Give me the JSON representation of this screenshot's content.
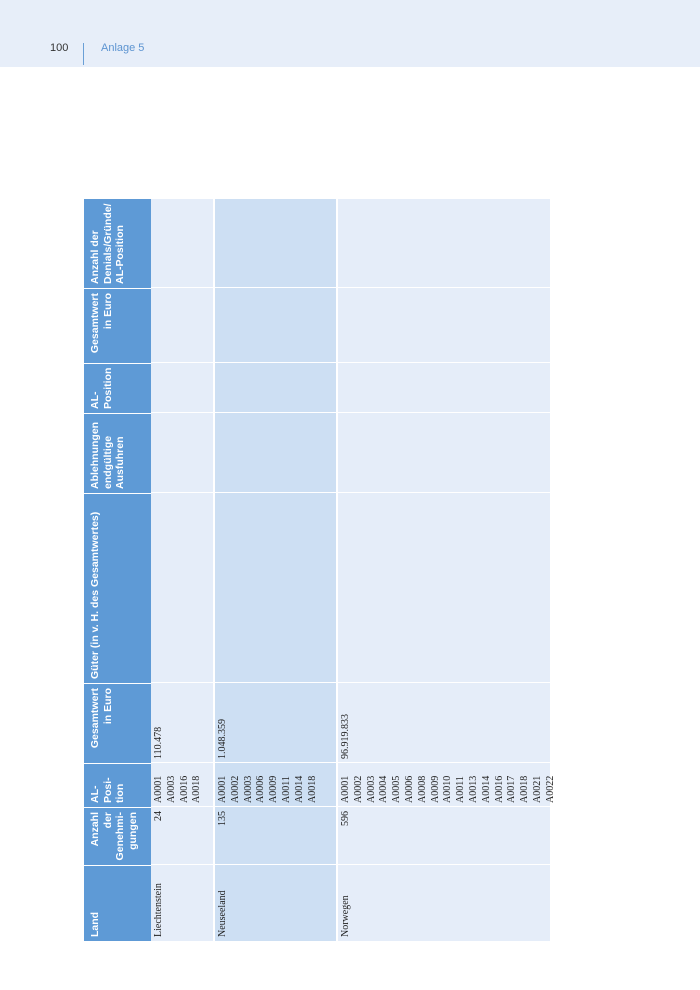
{
  "header": {
    "page_number": "100",
    "section": "Anlage 5"
  },
  "table": {
    "headers": {
      "land": "Land",
      "anzahl": [
        "Anzahl",
        "der",
        "Genehmi-",
        "gungen"
      ],
      "al_pos": [
        "AL-",
        "Posi-",
        "tion"
      ],
      "gesamtwert": [
        "Gesamtwert",
        "in Euro"
      ],
      "gueter": "Güter (in v. H. des Gesamtwertes)",
      "ablehnungen": [
        "Ablehnungen",
        "endgültige",
        "Ausfuhren"
      ],
      "al_position2": [
        "AL-",
        "Position"
      ],
      "gesamtwert2": [
        "Gesamtwert",
        "in Euro"
      ],
      "denials": [
        "Anzahl der",
        "Denials/Gründe/",
        "AL-Position"
      ]
    },
    "rows": [
      {
        "land": "Liechtenstein",
        "anzahl": "24",
        "positions": [
          "A0001",
          "A0003",
          "A0016",
          "A0018"
        ],
        "gesamtwert": "110.478"
      },
      {
        "land": "Neuseeland",
        "anzahl": "135",
        "positions": [
          "A0001",
          "A0002",
          "A0003",
          "A0006",
          "A0009",
          "A0011",
          "A0014",
          "A0018"
        ],
        "gesamtwert": "1.048.359"
      },
      {
        "land": "Norwegen",
        "anzahl": "596",
        "positions": [
          "A0001",
          "A0002",
          "A0003",
          "A0004",
          "A0005",
          "A0006",
          "A0008",
          "A0009",
          "A0010",
          "A0011",
          "A0013",
          "A0014",
          "A0016",
          "A0017",
          "A0018",
          "A0021",
          "A0022"
        ],
        "gesamtwert": "96.919.833"
      }
    ]
  }
}
